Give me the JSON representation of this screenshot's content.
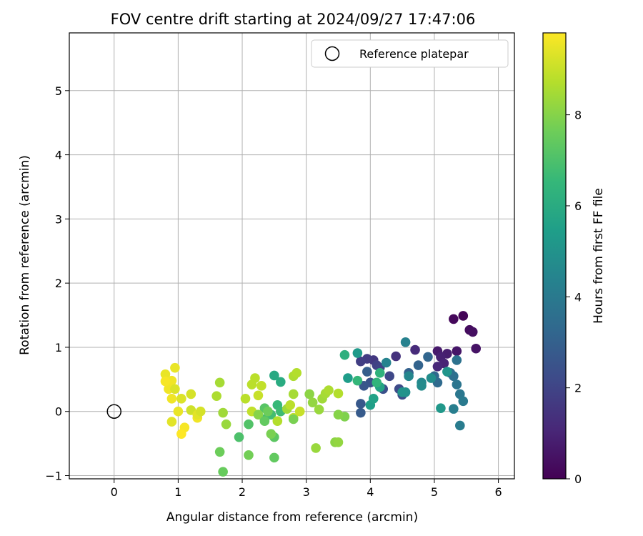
{
  "chart_data": {
    "type": "scatter",
    "title": "FOV centre drift starting at 2024/09/27 17:47:06",
    "xlabel": "Angular distance from reference (arcmin)",
    "ylabel": "Rotation from reference (arcmin)",
    "xlim": [
      -0.7,
      6.25
    ],
    "ylim": [
      -1.05,
      5.9
    ],
    "xticks": [
      0,
      1,
      2,
      3,
      4,
      5,
      6
    ],
    "yticks": [
      -1,
      0,
      1,
      2,
      3,
      4,
      5
    ],
    "grid": true,
    "legend": {
      "position": "top-right",
      "entries": [
        "Reference platepar"
      ]
    },
    "reference": {
      "x": 0,
      "y": 0
    },
    "colorbar": {
      "label": "Hours from first FF file",
      "colormap": "viridis",
      "range": [
        0,
        9.8
      ],
      "ticks": [
        0,
        2,
        4,
        6,
        8
      ]
    },
    "series": [
      {
        "points": [
          [
            5.45,
            1.49,
            0.1
          ],
          [
            5.3,
            1.44,
            0.2
          ],
          [
            5.55,
            1.27,
            0.3
          ],
          [
            5.6,
            1.24,
            0.4
          ],
          [
            5.65,
            0.98,
            0.5
          ],
          [
            5.35,
            0.94,
            0.6
          ],
          [
            5.05,
            0.94,
            0.7
          ],
          [
            5.2,
            0.9,
            0.8
          ],
          [
            5.1,
            0.85,
            0.9
          ],
          [
            5.15,
            0.75,
            1.0
          ],
          [
            5.05,
            0.7,
            1.1
          ],
          [
            4.7,
            0.96,
            1.2
          ],
          [
            4.4,
            0.86,
            1.4
          ],
          [
            4.05,
            0.8,
            1.6
          ],
          [
            3.95,
            0.82,
            1.7
          ],
          [
            3.85,
            0.78,
            1.8
          ],
          [
            4.1,
            0.72,
            1.9
          ],
          [
            4.15,
            0.68,
            2.0
          ],
          [
            4.3,
            0.55,
            2.1
          ],
          [
            4.45,
            0.35,
            2.2
          ],
          [
            4.5,
            0.26,
            2.3
          ],
          [
            4.2,
            0.35,
            2.4
          ],
          [
            4.0,
            0.45,
            2.5
          ],
          [
            3.9,
            0.4,
            2.6
          ],
          [
            3.85,
            0.12,
            2.7
          ],
          [
            3.85,
            -0.02,
            2.8
          ],
          [
            3.95,
            0.62,
            2.9
          ],
          [
            4.6,
            0.6,
            3.0
          ],
          [
            4.75,
            0.72,
            3.1
          ],
          [
            4.9,
            0.85,
            3.2
          ],
          [
            5.0,
            0.55,
            3.3
          ],
          [
            5.05,
            0.45,
            3.4
          ],
          [
            5.25,
            0.6,
            3.5
          ],
          [
            5.3,
            0.55,
            3.6
          ],
          [
            5.35,
            0.8,
            3.7
          ],
          [
            5.35,
            0.42,
            3.8
          ],
          [
            5.4,
            0.27,
            3.9
          ],
          [
            5.45,
            0.16,
            4.0
          ],
          [
            5.4,
            -0.22,
            4.1
          ],
          [
            5.3,
            0.04,
            4.2
          ],
          [
            4.55,
            1.08,
            4.3
          ],
          [
            4.25,
            0.76,
            4.4
          ],
          [
            4.6,
            0.55,
            4.5
          ],
          [
            4.8,
            0.45,
            4.6
          ],
          [
            4.8,
            0.4,
            4.7
          ],
          [
            4.95,
            0.52,
            4.8
          ],
          [
            4.55,
            0.3,
            4.9
          ],
          [
            4.5,
            0.3,
            5.0
          ],
          [
            5.2,
            0.62,
            5.1
          ],
          [
            5.1,
            0.05,
            5.2
          ],
          [
            3.8,
            0.91,
            5.3
          ],
          [
            3.65,
            0.52,
            5.4
          ],
          [
            4.0,
            0.1,
            5.5
          ],
          [
            4.05,
            0.2,
            5.6
          ],
          [
            4.15,
            0.38,
            5.7
          ],
          [
            2.5,
            0.56,
            5.9
          ],
          [
            2.6,
            0.46,
            6.0
          ],
          [
            3.6,
            0.88,
            6.2
          ],
          [
            4.15,
            0.6,
            6.3
          ],
          [
            4.1,
            0.45,
            6.4
          ],
          [
            3.8,
            0.48,
            6.5
          ],
          [
            2.55,
            0.1,
            6.6
          ],
          [
            2.6,
            0.0,
            6.7
          ],
          [
            2.45,
            -0.05,
            6.8
          ],
          [
            2.35,
            -0.12,
            6.9
          ],
          [
            1.95,
            -0.4,
            7.0
          ],
          [
            2.1,
            -0.2,
            7.1
          ],
          [
            2.35,
            0.05,
            7.2
          ],
          [
            2.5,
            -0.4,
            7.3
          ],
          [
            2.5,
            -0.72,
            7.4
          ],
          [
            1.7,
            -0.94,
            7.5
          ],
          [
            1.65,
            -0.63,
            7.6
          ],
          [
            2.1,
            -0.68,
            7.7
          ],
          [
            2.45,
            -0.35,
            7.8
          ],
          [
            3.6,
            -0.08,
            7.9
          ],
          [
            3.5,
            -0.05,
            8.0
          ],
          [
            3.45,
            -0.48,
            8.1
          ],
          [
            3.5,
            -0.48,
            8.2
          ],
          [
            3.15,
            -0.57,
            8.3
          ],
          [
            2.7,
            0.04,
            8.4
          ],
          [
            2.8,
            0.27,
            8.5
          ],
          [
            2.8,
            0.55,
            8.6
          ],
          [
            2.85,
            0.6,
            8.7
          ],
          [
            2.75,
            0.1,
            8.8
          ],
          [
            2.8,
            -0.1,
            8.9
          ],
          [
            2.9,
            0.0,
            9.0
          ],
          [
            3.05,
            0.27,
            8.1
          ],
          [
            3.1,
            0.14,
            8.2
          ],
          [
            3.2,
            0.03,
            8.3
          ],
          [
            3.25,
            0.2,
            8.4
          ],
          [
            3.3,
            0.28,
            8.5
          ],
          [
            3.35,
            0.33,
            8.6
          ],
          [
            3.5,
            0.28,
            8.7
          ],
          [
            2.2,
            0.52,
            8.8
          ],
          [
            2.3,
            0.4,
            8.9
          ],
          [
            2.25,
            0.25,
            9.0
          ],
          [
            2.15,
            0.0,
            8.9
          ],
          [
            2.05,
            0.2,
            8.8
          ],
          [
            2.55,
            -0.15,
            8.7
          ],
          [
            1.6,
            0.24,
            8.6
          ],
          [
            1.65,
            0.45,
            8.5
          ],
          [
            1.7,
            -0.02,
            8.4
          ],
          [
            1.75,
            -0.2,
            8.3
          ],
          [
            0.8,
            0.58,
            9.5
          ],
          [
            0.9,
            0.48,
            9.6
          ],
          [
            0.95,
            0.68,
            9.5
          ],
          [
            0.85,
            0.35,
            9.6
          ],
          [
            0.8,
            0.47,
            9.7
          ],
          [
            0.9,
            0.2,
            9.6
          ],
          [
            0.9,
            -0.16,
            9.4
          ],
          [
            1.0,
            0.0,
            9.5
          ],
          [
            1.05,
            0.2,
            9.3
          ],
          [
            1.1,
            -0.25,
            9.7
          ],
          [
            1.05,
            -0.35,
            9.8
          ],
          [
            1.2,
            0.27,
            9.2
          ],
          [
            1.2,
            0.02,
            9.1
          ],
          [
            1.3,
            -0.1,
            9.6
          ],
          [
            1.3,
            -0.05,
            9.4
          ],
          [
            1.35,
            0.0,
            9.2
          ],
          [
            0.95,
            0.35,
            9.3
          ],
          [
            2.15,
            0.42,
            8.8
          ],
          [
            2.25,
            -0.05,
            8.0
          ],
          [
            2.4,
            0.0,
            7.6
          ],
          [
            2.35,
            -0.15,
            7.4
          ],
          [
            2.8,
            -0.12,
            7.8
          ]
        ]
      }
    ]
  }
}
